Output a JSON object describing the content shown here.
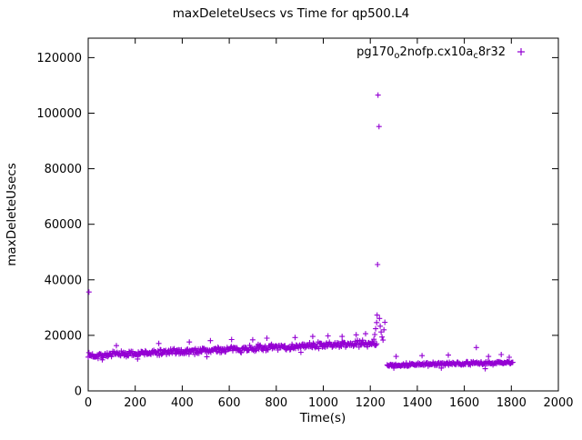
{
  "chart_data": {
    "type": "scatter",
    "title": "maxDeleteUsecs vs Time for qp500.L4",
    "xlabel": "Time(s)",
    "ylabel": "maxDeleteUsecs",
    "xlim": [
      0,
      2000
    ],
    "ylim": [
      0,
      127000
    ],
    "xticks": [
      0,
      200,
      400,
      600,
      800,
      1000,
      1200,
      1400,
      1600,
      1800,
      2000
    ],
    "yticks": [
      0,
      20000,
      40000,
      60000,
      80000,
      100000,
      120000
    ],
    "grid": false,
    "series_color": "#9400d3",
    "marker": "+",
    "legend": {
      "position": "top-right",
      "marker": "+",
      "label_plain": "pg170_o2nofp.cx10a_c8r32",
      "label_parts": [
        {
          "text": "pg170",
          "sub": false
        },
        {
          "text": "o",
          "sub": true
        },
        {
          "text": "2nofp.cx10a",
          "sub": false
        },
        {
          "text": "c",
          "sub": true
        },
        {
          "text": "8r32",
          "sub": false
        }
      ]
    },
    "bands": [
      {
        "name": "pre-spike-band",
        "x_start": 0,
        "x_end": 1228,
        "step": 3,
        "y_start": 12700,
        "y_end": 17300,
        "jitter": 1400,
        "seed": 7
      },
      {
        "name": "post-spike-band",
        "x_start": 1272,
        "x_end": 1808,
        "step": 3,
        "y_start": 9300,
        "y_end": 10200,
        "jitter": 750,
        "seed": 13
      }
    ],
    "outlier_points": [
      [
        3,
        35600
      ],
      [
        1215,
        18600
      ],
      [
        1219,
        20300
      ],
      [
        1223,
        22400
      ],
      [
        1227,
        24600
      ],
      [
        1229,
        27300
      ],
      [
        1231,
        45500
      ],
      [
        1233,
        106500
      ],
      [
        1237,
        95200
      ],
      [
        1239,
        26100
      ],
      [
        1242,
        23300
      ],
      [
        1246,
        21200
      ],
      [
        1250,
        19400
      ],
      [
        1254,
        18300
      ],
      [
        1258,
        22000
      ],
      [
        1262,
        24700
      ],
      [
        120,
        16300
      ],
      [
        300,
        17100
      ],
      [
        430,
        17600
      ],
      [
        520,
        18100
      ],
      [
        610,
        18500
      ],
      [
        700,
        18400
      ],
      [
        760,
        19000
      ],
      [
        880,
        19200
      ],
      [
        955,
        19600
      ],
      [
        1020,
        19800
      ],
      [
        1080,
        19600
      ],
      [
        1140,
        20200
      ],
      [
        1180,
        20600
      ],
      [
        60,
        11200
      ],
      [
        210,
        11500
      ],
      [
        505,
        12300
      ],
      [
        905,
        13900
      ],
      [
        1310,
        12400
      ],
      [
        1420,
        12700
      ],
      [
        1532,
        12900
      ],
      [
        1651,
        15600
      ],
      [
        1703,
        12400
      ],
      [
        1757,
        13100
      ],
      [
        1791,
        12100
      ],
      [
        1300,
        8200
      ],
      [
        1502,
        8200
      ],
      [
        1689,
        8000
      ]
    ]
  }
}
